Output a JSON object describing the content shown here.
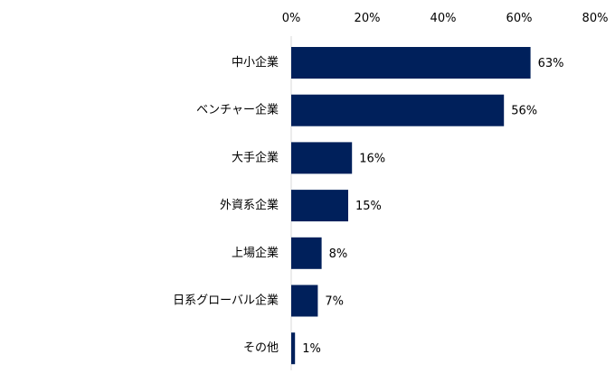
{
  "chart_data": {
    "type": "bar",
    "orientation": "horizontal",
    "categories": [
      "中小企業",
      "ベンチャー企業",
      "大手企業",
      "外資系企業",
      "上場企業",
      "日系グローバル企業",
      "その他"
    ],
    "values": [
      63,
      56,
      16,
      15,
      8,
      7,
      1
    ],
    "value_labels": [
      "63%",
      "56%",
      "16%",
      "15%",
      "8%",
      "7%",
      "1%"
    ],
    "xlim": [
      0,
      80
    ],
    "x_ticks": [
      0,
      20,
      40,
      60,
      80
    ],
    "x_tick_labels": [
      "0%",
      "20%",
      "40%",
      "60%",
      "80%"
    ],
    "x_axis_position": "top",
    "grid": false,
    "legend": "none",
    "colors": {
      "bar": "#00205B",
      "text": "#000000",
      "axis_line": "#d9d9d9"
    }
  }
}
